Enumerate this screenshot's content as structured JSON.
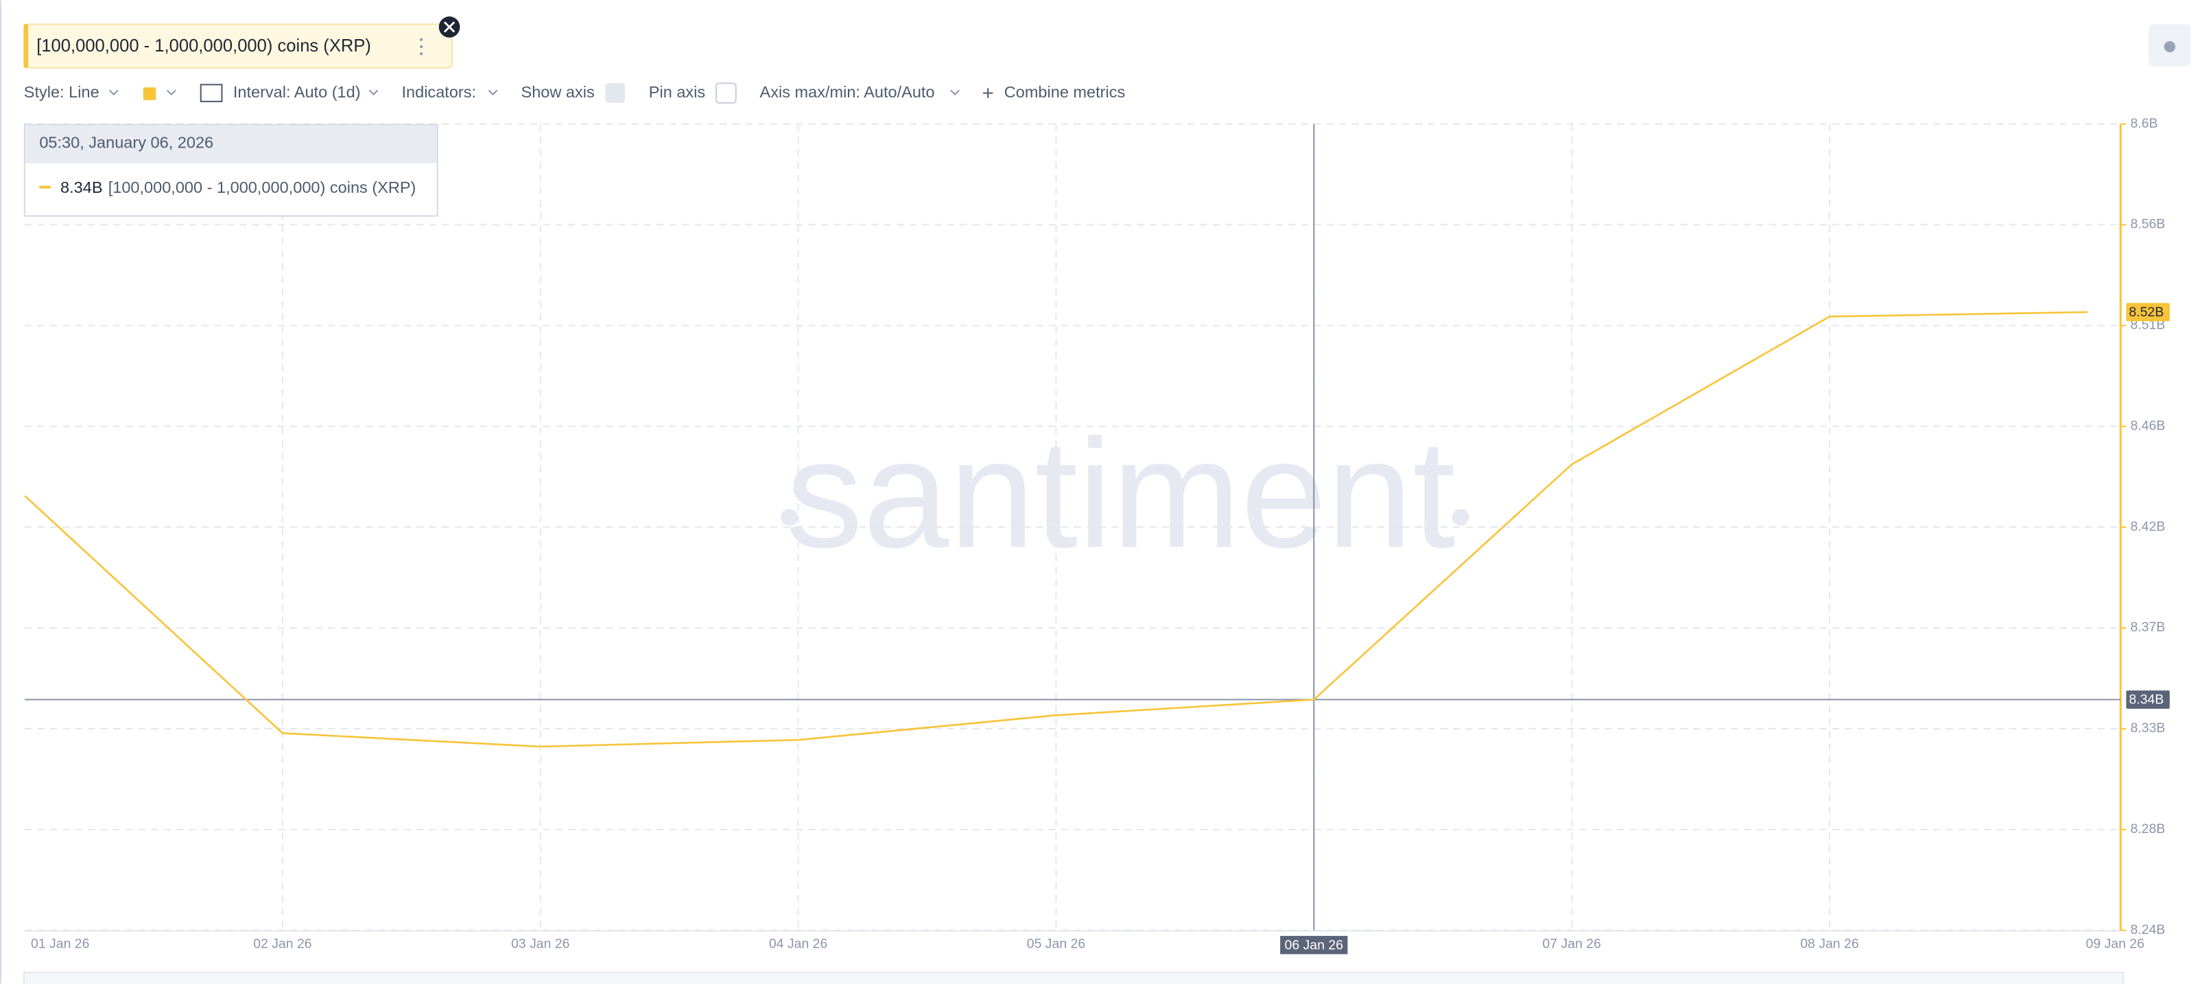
{
  "metric_chip": {
    "label": "[100,000,000 - 1,000,000,000) coins (XRP)"
  },
  "toolbar": {
    "style": "Style: Line",
    "interval": "Interval: Auto (1d)",
    "indicators": "Indicators:",
    "show_axis": "Show axis",
    "pin_axis": "Pin axis",
    "axis_minmax": "Axis max/min: Auto/Auto",
    "combine": "Combine metrics"
  },
  "watermark": "santiment",
  "chart_data": {
    "type": "line",
    "categories": [
      "01 Jan 26",
      "02 Jan 26",
      "03 Jan 26",
      "04 Jan 26",
      "05 Jan 26",
      "06 Jan 26",
      "07 Jan 26",
      "08 Jan 26",
      "09 Jan 26"
    ],
    "series": [
      {
        "name": "[100,000,000 - 1,000,000,000) coins (XRP)",
        "color": "#f7c43a",
        "values": [
          8434000000,
          8328000000,
          8322000000,
          8325000000,
          8336000000,
          8343000000,
          8448000000,
          8514000000,
          8516000000
        ]
      }
    ],
    "ylim": [
      8240000000,
      8600000000
    ],
    "yticks": [
      {
        "value": 8240000000,
        "label": "8.24B"
      },
      {
        "value": 8285000000,
        "label": "8.28B"
      },
      {
        "value": 8330000000,
        "label": "8.33B"
      },
      {
        "value": 8375000000,
        "label": "8.37B"
      },
      {
        "value": 8420000000,
        "label": "8.42B"
      },
      {
        "value": 8465000000,
        "label": "8.46B"
      },
      {
        "value": 8510000000,
        "label": "8.51B"
      },
      {
        "value": 8555000000,
        "label": "8.56B"
      },
      {
        "value": 8600000000,
        "label": "8.6B"
      }
    ],
    "grid": true,
    "tooltip": {
      "time": "05:30, January 06, 2026",
      "value": 8343000000,
      "label": "8.34B"
    },
    "crosshair_x": "06 Jan 26",
    "badges": [
      {
        "value": 8516000000,
        "label": "8.52B"
      },
      {
        "value": 8343000000,
        "label": "8.34B"
      }
    ]
  }
}
